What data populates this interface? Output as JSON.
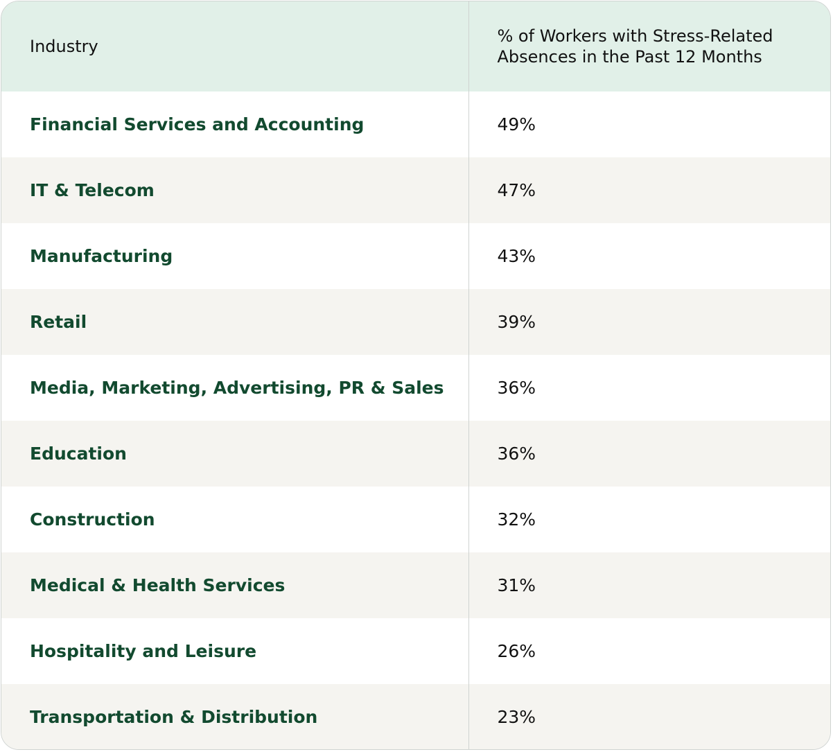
{
  "table": {
    "header": [
      "Industry",
      "% of Workers with Stress-Related Absences in the Past 12 Months"
    ],
    "rows": [
      [
        "Financial Services and Accounting",
        "49%"
      ],
      [
        "IT & Telecom",
        "47%"
      ],
      [
        "Manufacturing",
        "43%"
      ],
      [
        "Retail",
        "39%"
      ],
      [
        "Media, Marketing, Advertising, PR & Sales",
        "36%"
      ],
      [
        "Education",
        "36%"
      ],
      [
        "Construction",
        "32%"
      ],
      [
        "Medical & Health Services",
        "31%"
      ],
      [
        "Hospitality and Leisure",
        "26%"
      ],
      [
        "Transportation & Distribution",
        "23%"
      ]
    ]
  }
}
